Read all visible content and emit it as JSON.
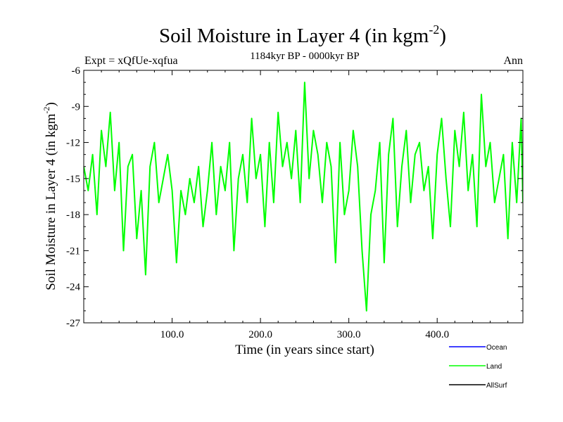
{
  "chart_data": {
    "type": "line",
    "title": "Soil Moisture in Layer 4 (in kgm",
    "title_sup": "-2",
    "title_close": ")",
    "subtitle_left": "Expt = xQfUe-xqfua",
    "subtitle_center": "1184kyr BP - 0000kyr BP",
    "subtitle_right": "Ann",
    "xlabel": "Time (in years since start)",
    "ylabel": "Soil Moisture in Layer 4 (in kgm",
    "ylabel_sup": "-2",
    "ylabel_close": ")",
    "xlim": [
      0,
      497
    ],
    "ylim": [
      -27,
      -6
    ],
    "x_ticks": [
      100,
      200,
      300,
      400
    ],
    "x_tick_labels": [
      "100.0",
      "200.0",
      "300.0",
      "400.0"
    ],
    "y_ticks": [
      -6,
      -9,
      -12,
      -15,
      -18,
      -21,
      -24,
      -27
    ],
    "y_tick_labels": [
      "-6",
      "-9",
      "-12",
      "-15",
      "-18",
      "-21",
      "-24",
      "-27"
    ],
    "legend": [
      {
        "name": "Ocean",
        "color": "#0000ff"
      },
      {
        "name": "Land",
        "color": "#00ff00"
      },
      {
        "name": "AllSurf",
        "color": "#000000"
      }
    ],
    "series": [
      {
        "name": "Land",
        "color": "#00ff00",
        "x": [
          0,
          5,
          10,
          15,
          20,
          25,
          30,
          35,
          40,
          45,
          50,
          55,
          60,
          65,
          70,
          75,
          80,
          85,
          90,
          95,
          100,
          105,
          110,
          115,
          120,
          125,
          130,
          135,
          140,
          145,
          150,
          155,
          160,
          165,
          170,
          175,
          180,
          185,
          190,
          195,
          200,
          205,
          210,
          215,
          220,
          225,
          230,
          235,
          240,
          245,
          250,
          255,
          260,
          265,
          270,
          275,
          280,
          285,
          290,
          295,
          300,
          305,
          310,
          315,
          320,
          325,
          330,
          335,
          340,
          345,
          350,
          355,
          360,
          365,
          370,
          375,
          380,
          385,
          390,
          395,
          400,
          405,
          410,
          415,
          420,
          425,
          430,
          435,
          440,
          445,
          450,
          455,
          460,
          465,
          470,
          475,
          480,
          485,
          490,
          495,
          497
        ],
        "values": [
          -14,
          -16,
          -13,
          -18,
          -11,
          -14,
          -9.5,
          -16,
          -12,
          -21,
          -14,
          -13,
          -20,
          -16,
          -23,
          -14,
          -12,
          -17,
          -15,
          -13,
          -16,
          -22,
          -16,
          -18,
          -15,
          -17,
          -14,
          -19,
          -16,
          -12,
          -18,
          -14,
          -16,
          -12,
          -21,
          -15,
          -13,
          -17,
          -10,
          -15,
          -13,
          -19,
          -12,
          -17,
          -9.5,
          -14,
          -12,
          -15,
          -11,
          -17,
          -7,
          -15,
          -11,
          -13,
          -17,
          -12,
          -14,
          -22,
          -12,
          -18,
          -16,
          -11,
          -14,
          -21,
          -26,
          -18,
          -16,
          -12,
          -22,
          -13,
          -10,
          -19,
          -14,
          -11,
          -17,
          -13,
          -12,
          -16,
          -14,
          -20,
          -13,
          -10,
          -15,
          -19,
          -11,
          -14,
          -9.5,
          -16,
          -13,
          -19,
          -8,
          -14,
          -12,
          -17,
          -15,
          -13,
          -20,
          -12,
          -17,
          -10,
          -17
        ]
      }
    ]
  }
}
